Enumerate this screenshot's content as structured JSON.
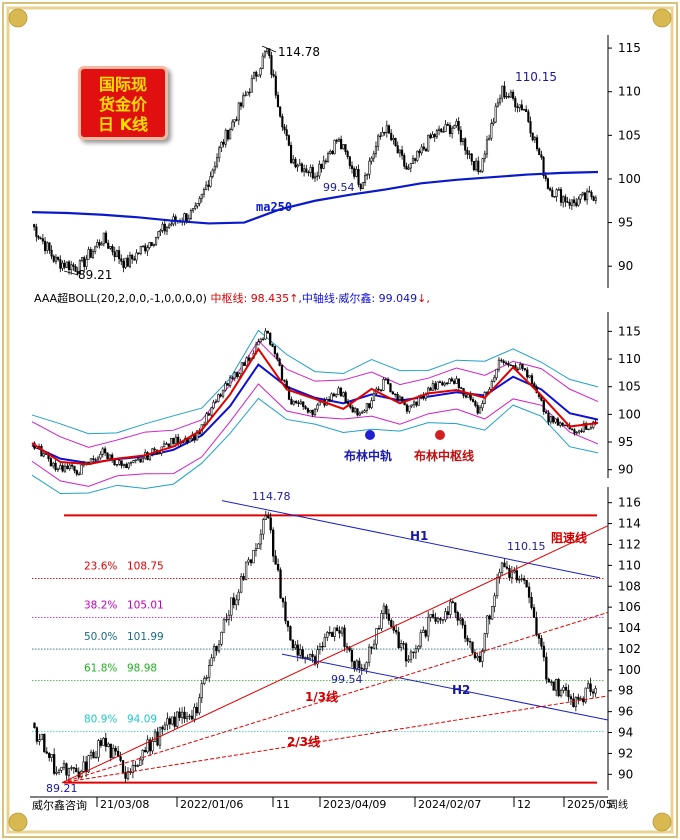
{
  "badge": {
    "line1": "国际现",
    "line2": "货金价",
    "line3": "日 K线"
  },
  "watermark": "威尔鑫咨询",
  "indicator_header": {
    "name": "AAA超BOLL(20,2,0,0,-1,0,0,0,0)",
    "mid_label": "中枢线:",
    "mid_value": "98.435",
    "mid_arrow": "↑",
    "axis_label": ",中轴线·威尔鑫:",
    "axis_value": "99.049",
    "axis_arrow": "↓",
    "tail": ","
  },
  "colors": {
    "price": "#000000",
    "ma250": "#0a1ac8",
    "boll_mid": "#e00000",
    "boll_axis": "#1010d0",
    "band_inner": "#d020c8",
    "band_outer": "#20a0c8",
    "red_line": "#e00000",
    "blue_line": "#1a22c0"
  },
  "chart_data": [
    {
      "type": "candlestick",
      "title": "国际现货金价日K线",
      "yticks": [
        "115",
        "110",
        "105",
        "100",
        "95",
        "90"
      ],
      "ylim": [
        87.5,
        116.5
      ],
      "annotations": [
        {
          "label": "114.78",
          "y": 114.78
        },
        {
          "label": "110.15",
          "y": 110.15
        },
        {
          "label": "99.54",
          "y": 99.54
        },
        {
          "label": "89.21",
          "y": 89.21
        },
        {
          "label": "ma250"
        }
      ],
      "series": [
        {
          "name": "ma250",
          "values": [
            96.2,
            96.1,
            95.9,
            95.6,
            95.2,
            94.9,
            95.0,
            96.5,
            97.5,
            98.2,
            98.8,
            99.5,
            99.9,
            100.2,
            100.5,
            100.7,
            100.8
          ]
        }
      ],
      "price_path": [
        94.8,
        90.6,
        89.8,
        93.2,
        90.2,
        92.8,
        95.1,
        96.2,
        103.5,
        109.0,
        114.78,
        102.5,
        100.6,
        104.5,
        99.54,
        106.0,
        100.8,
        104.8,
        106.2,
        100.8,
        110.15,
        108.0,
        99.0,
        97.2,
        98.3
      ]
    },
    {
      "type": "line",
      "title": "AAA超BOLL(20,2,0,0,-1,0,0,0,0)",
      "yticks": [
        "115",
        "110",
        "105",
        "100",
        "95",
        "90"
      ],
      "ylim": [
        88.5,
        118.5
      ],
      "series": [
        {
          "name": "中枢线",
          "values": [
            94.8,
            91.4,
            91.0,
            92.0,
            92.6,
            94.2,
            97.2,
            103.6,
            111.8,
            104.5,
            102.8,
            101.0,
            104.6,
            102.0,
            103.8,
            104.4,
            103.0,
            108.5,
            103.4,
            97.8,
            98.43
          ]
        },
        {
          "name": "中轴线·威尔鑫",
          "values": [
            94.4,
            92.0,
            91.2,
            91.9,
            92.4,
            93.6,
            96.2,
            101.5,
            109.0,
            105.0,
            103.0,
            102.0,
            103.6,
            102.5,
            103.2,
            104.0,
            103.4,
            106.8,
            104.5,
            100.2,
            99.05
          ]
        }
      ],
      "legend": [
        "布林中轨",
        "布林中枢线"
      ]
    },
    {
      "type": "candlestick",
      "title": "",
      "yticks": [
        "116",
        "114",
        "112",
        "110",
        "108",
        "106",
        "104",
        "102",
        "100",
        "98",
        "96",
        "94",
        "92",
        "90"
      ],
      "ylim": [
        88.5,
        117.5
      ],
      "xticks": [
        "21/03/08",
        "2022/01/06",
        "11",
        "2023/04/09",
        "2024/02/07",
        "12",
        "2025/05"
      ],
      "x_end_label": "周线",
      "fib_levels": [
        {
          "pct": "23.6%",
          "value": "108.75",
          "color": "#e00000"
        },
        {
          "pct": "38.2%",
          "value": "105.01",
          "color": "#c000c0"
        },
        {
          "pct": "50.0%",
          "value": "101.99",
          "color": "#1a6a8a"
        },
        {
          "pct": "61.8%",
          "value": "98.98",
          "color": "#20b020"
        },
        {
          "pct": "80.9%",
          "value": "94.09",
          "color": "#20c8c8"
        }
      ],
      "line_labels": [
        "H1",
        "H2",
        "阻速线",
        "1/3线",
        "2/3线"
      ],
      "annotations": [
        {
          "label": "114.78",
          "y": 114.78
        },
        {
          "label": "110.15",
          "y": 110.15
        },
        {
          "label": "99.54",
          "y": 99.54
        },
        {
          "label": "89.21",
          "y": 89.21
        }
      ],
      "price_path": [
        94.8,
        90.6,
        89.8,
        93.2,
        90.2,
        92.8,
        95.1,
        96.2,
        103.5,
        109.0,
        114.78,
        102.5,
        100.6,
        104.5,
        99.54,
        106.0,
        100.8,
        104.8,
        106.2,
        100.8,
        110.15,
        108.0,
        99.0,
        97.2,
        98.3
      ]
    }
  ]
}
